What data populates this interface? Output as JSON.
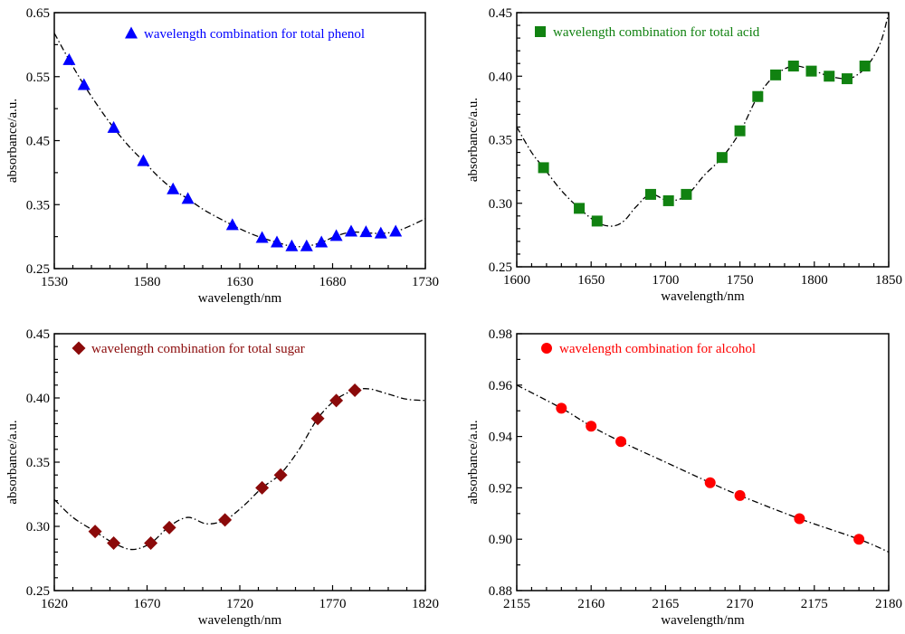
{
  "chart_data": [
    {
      "type": "scatter",
      "panel": "top-left",
      "xlabel": "wavelength/nm",
      "ylabel": "absorbance/a.u.",
      "xlim": [
        1530,
        1730
      ],
      "ylim": [
        0.25,
        0.65
      ],
      "xticks": [
        1530,
        1580,
        1630,
        1680,
        1730
      ],
      "xtick_labels": [
        "1530",
        "1580",
        "1630",
        "1680",
        "1730"
      ],
      "yticks": [
        0.25,
        0.35,
        0.45,
        0.55,
        0.65
      ],
      "ytick_labels": [
        "0.25",
        "0.35",
        "0.45",
        "0.55",
        "0.65"
      ],
      "x_minor_step": 10,
      "y_minor_step": 0.05,
      "legend_position": "top-right",
      "marker": "triangle",
      "color": "#0000ff",
      "series": [
        {
          "name": "wavelength combination for total phenol",
          "x": [
            1538,
            1546,
            1562,
            1578,
            1594,
            1602,
            1626,
            1642,
            1650,
            1658,
            1666,
            1674,
            1682,
            1690,
            1698,
            1706,
            1714
          ],
          "y": [
            0.576,
            0.537,
            0.47,
            0.418,
            0.374,
            0.359,
            0.318,
            0.298,
            0.291,
            0.285,
            0.285,
            0.291,
            0.301,
            0.308,
            0.307,
            0.305,
            0.308
          ]
        }
      ],
      "spectrum": {
        "x": [
          1530,
          1538,
          1546,
          1554,
          1562,
          1570,
          1578,
          1586,
          1594,
          1602,
          1610,
          1618,
          1626,
          1634,
          1642,
          1650,
          1658,
          1666,
          1674,
          1682,
          1690,
          1698,
          1706,
          1714,
          1722,
          1730
        ],
        "y": [
          0.618,
          0.576,
          0.537,
          0.502,
          0.47,
          0.442,
          0.418,
          0.394,
          0.374,
          0.359,
          0.343,
          0.33,
          0.318,
          0.307,
          0.298,
          0.291,
          0.285,
          0.285,
          0.291,
          0.301,
          0.307,
          0.306,
          0.305,
          0.308,
          0.317,
          0.328
        ]
      }
    },
    {
      "type": "scatter",
      "panel": "top-right",
      "xlabel": "wavelength/nm",
      "ylabel": "absorbance/a.u.",
      "xlim": [
        1600,
        1850
      ],
      "ylim": [
        0.25,
        0.45
      ],
      "xticks": [
        1600,
        1650,
        1700,
        1750,
        1800,
        1850
      ],
      "xtick_labels": [
        "1600",
        "1650",
        "1700",
        "1750",
        "1800",
        "1850"
      ],
      "yticks": [
        0.25,
        0.3,
        0.35,
        0.4,
        0.45
      ],
      "ytick_labels": [
        "0.25",
        "0.30",
        "0.35",
        "0.40",
        "0.45"
      ],
      "x_minor_step": 10,
      "y_minor_step": 0.01,
      "legend_position": "top-left",
      "marker": "square",
      "color": "#118211",
      "series": [
        {
          "name": "wavelength combination for total acid",
          "x": [
            1618,
            1642,
            1654,
            1690,
            1702,
            1714,
            1738,
            1750,
            1762,
            1774,
            1786,
            1798,
            1810,
            1822,
            1834
          ],
          "y": [
            0.328,
            0.296,
            0.286,
            0.307,
            0.302,
            0.307,
            0.336,
            0.357,
            0.384,
            0.401,
            0.408,
            0.404,
            0.4,
            0.398,
            0.408
          ]
        }
      ],
      "spectrum": {
        "x": [
          1600,
          1610,
          1618,
          1630,
          1642,
          1654,
          1664,
          1672,
          1680,
          1690,
          1702,
          1714,
          1726,
          1738,
          1750,
          1762,
          1774,
          1786,
          1798,
          1810,
          1822,
          1830,
          1838,
          1845,
          1850
        ],
        "y": [
          0.36,
          0.34,
          0.328,
          0.31,
          0.296,
          0.285,
          0.282,
          0.286,
          0.297,
          0.307,
          0.302,
          0.306,
          0.322,
          0.336,
          0.356,
          0.384,
          0.401,
          0.408,
          0.405,
          0.4,
          0.398,
          0.402,
          0.412,
          0.428,
          0.45
        ]
      }
    },
    {
      "type": "scatter",
      "panel": "bottom-left",
      "xlabel": "wavelength/nm",
      "ylabel": "absorbance/a.u.",
      "xlim": [
        1620,
        1820
      ],
      "ylim": [
        0.25,
        0.45
      ],
      "xticks": [
        1620,
        1670,
        1720,
        1770,
        1820
      ],
      "xtick_labels": [
        "1620",
        "1670",
        "1720",
        "1770",
        "1820"
      ],
      "yticks": [
        0.25,
        0.3,
        0.35,
        0.4,
        0.45
      ],
      "ytick_labels": [
        "0.25",
        "0.30",
        "0.35",
        "0.40",
        "0.45"
      ],
      "x_minor_step": 10,
      "y_minor_step": 0.01,
      "legend_position": "top-left",
      "marker": "diamond",
      "color": "#8b0a0a",
      "series": [
        {
          "name": "wavelength combination for total sugar",
          "x": [
            1642,
            1652,
            1672,
            1682,
            1712,
            1732,
            1742,
            1762,
            1772,
            1782
          ],
          "y": [
            0.296,
            0.287,
            0.287,
            0.299,
            0.305,
            0.33,
            0.34,
            0.384,
            0.398,
            0.406
          ]
        }
      ],
      "spectrum": {
        "x": [
          1620,
          1630,
          1642,
          1652,
          1662,
          1672,
          1682,
          1692,
          1702,
          1712,
          1722,
          1732,
          1742,
          1752,
          1762,
          1772,
          1782,
          1790,
          1800,
          1810,
          1820
        ],
        "y": [
          0.321,
          0.307,
          0.296,
          0.287,
          0.282,
          0.287,
          0.3,
          0.307,
          0.302,
          0.305,
          0.316,
          0.33,
          0.341,
          0.36,
          0.384,
          0.399,
          0.406,
          0.407,
          0.403,
          0.399,
          0.398
        ]
      }
    },
    {
      "type": "scatter",
      "panel": "bottom-right",
      "xlabel": "wavelength/nm",
      "ylabel": "absorbance/a.u.",
      "xlim": [
        2155,
        2180
      ],
      "ylim": [
        0.88,
        0.98
      ],
      "xticks": [
        2155,
        2160,
        2165,
        2170,
        2175,
        2180
      ],
      "xtick_labels": [
        "2155",
        "2160",
        "2165",
        "2170",
        "2175",
        "2180"
      ],
      "yticks": [
        0.88,
        0.9,
        0.92,
        0.94,
        0.96,
        0.98
      ],
      "ytick_labels": [
        "0.88",
        "0.90",
        "0.92",
        "0.94",
        "0.96",
        "0.98"
      ],
      "x_minor_step": 1,
      "y_minor_step": 0.01,
      "legend_position": "top-left",
      "marker": "circle",
      "color": "#ff0000",
      "series": [
        {
          "name": "wavelength combination for alcohol",
          "x": [
            2158,
            2160,
            2162,
            2168,
            2170,
            2174,
            2178
          ],
          "y": [
            0.951,
            0.944,
            0.938,
            0.922,
            0.917,
            0.908,
            0.9
          ]
        }
      ],
      "spectrum": {
        "x": [
          2155,
          2158,
          2160,
          2162,
          2165,
          2168,
          2170,
          2174,
          2178,
          2180
        ],
        "y": [
          0.96,
          0.951,
          0.944,
          0.938,
          0.93,
          0.922,
          0.917,
          0.908,
          0.9,
          0.895
        ]
      }
    }
  ]
}
